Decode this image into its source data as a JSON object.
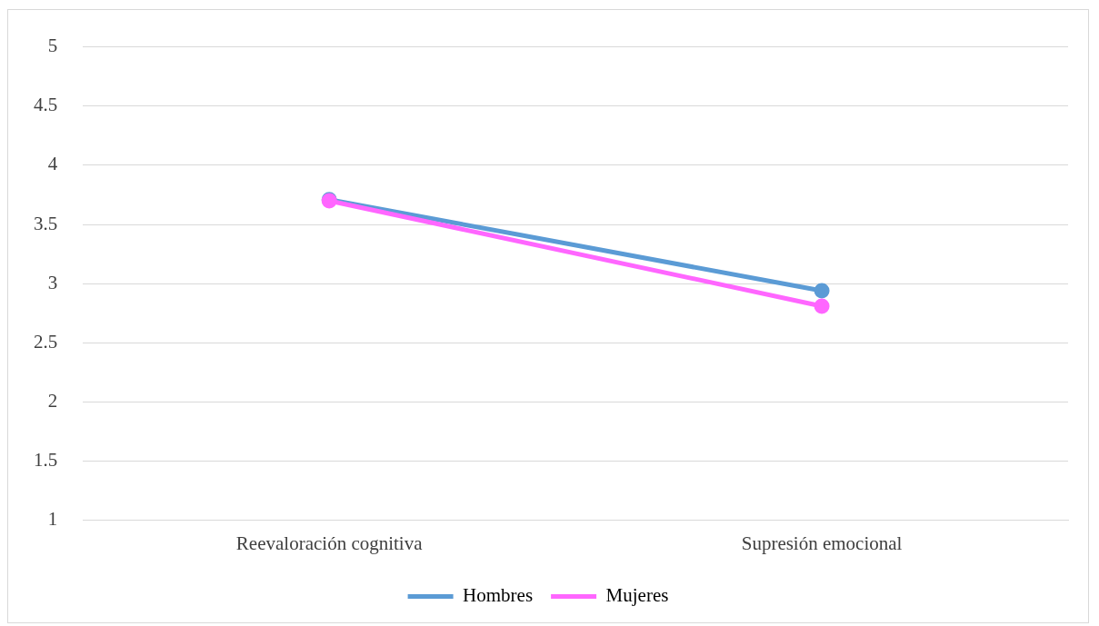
{
  "chart_data": {
    "type": "line",
    "categories": [
      "Reevaloración cognitiva",
      "Supresión emocional"
    ],
    "series": [
      {
        "name": "Hombres",
        "color": "#5b9bd5",
        "values": [
          3.71,
          2.94
        ]
      },
      {
        "name": "Mujeres",
        "color": "#ff66ff",
        "values": [
          3.7,
          2.81
        ]
      }
    ],
    "ylim": [
      1,
      5
    ],
    "yticks": [
      1,
      1.5,
      2,
      2.5,
      3,
      3.5,
      4,
      4.5,
      5
    ],
    "grid": "y",
    "legend": "bottom",
    "marker": "circle",
    "line_style": "solid"
  }
}
